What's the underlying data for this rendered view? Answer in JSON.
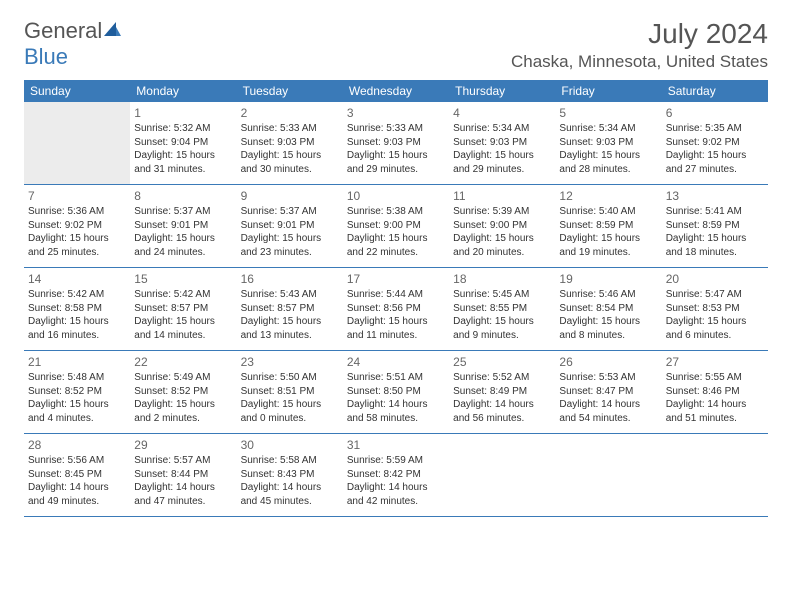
{
  "logo": {
    "text1": "General",
    "text2": "Blue"
  },
  "title": "July 2024",
  "location": "Chaska, Minnesota, United States",
  "day_headers": [
    "Sunday",
    "Monday",
    "Tuesday",
    "Wednesday",
    "Thursday",
    "Friday",
    "Saturday"
  ],
  "header_color": "#3a7ab8",
  "first_weekday": 1,
  "days": [
    {
      "n": 1,
      "sr": "5:32 AM",
      "ss": "9:04 PM",
      "dl": "15 hours and 31 minutes."
    },
    {
      "n": 2,
      "sr": "5:33 AM",
      "ss": "9:03 PM",
      "dl": "15 hours and 30 minutes."
    },
    {
      "n": 3,
      "sr": "5:33 AM",
      "ss": "9:03 PM",
      "dl": "15 hours and 29 minutes."
    },
    {
      "n": 4,
      "sr": "5:34 AM",
      "ss": "9:03 PM",
      "dl": "15 hours and 29 minutes."
    },
    {
      "n": 5,
      "sr": "5:34 AM",
      "ss": "9:03 PM",
      "dl": "15 hours and 28 minutes."
    },
    {
      "n": 6,
      "sr": "5:35 AM",
      "ss": "9:02 PM",
      "dl": "15 hours and 27 minutes."
    },
    {
      "n": 7,
      "sr": "5:36 AM",
      "ss": "9:02 PM",
      "dl": "15 hours and 25 minutes."
    },
    {
      "n": 8,
      "sr": "5:37 AM",
      "ss": "9:01 PM",
      "dl": "15 hours and 24 minutes."
    },
    {
      "n": 9,
      "sr": "5:37 AM",
      "ss": "9:01 PM",
      "dl": "15 hours and 23 minutes."
    },
    {
      "n": 10,
      "sr": "5:38 AM",
      "ss": "9:00 PM",
      "dl": "15 hours and 22 minutes."
    },
    {
      "n": 11,
      "sr": "5:39 AM",
      "ss": "9:00 PM",
      "dl": "15 hours and 20 minutes."
    },
    {
      "n": 12,
      "sr": "5:40 AM",
      "ss": "8:59 PM",
      "dl": "15 hours and 19 minutes."
    },
    {
      "n": 13,
      "sr": "5:41 AM",
      "ss": "8:59 PM",
      "dl": "15 hours and 18 minutes."
    },
    {
      "n": 14,
      "sr": "5:42 AM",
      "ss": "8:58 PM",
      "dl": "15 hours and 16 minutes."
    },
    {
      "n": 15,
      "sr": "5:42 AM",
      "ss": "8:57 PM",
      "dl": "15 hours and 14 minutes."
    },
    {
      "n": 16,
      "sr": "5:43 AM",
      "ss": "8:57 PM",
      "dl": "15 hours and 13 minutes."
    },
    {
      "n": 17,
      "sr": "5:44 AM",
      "ss": "8:56 PM",
      "dl": "15 hours and 11 minutes."
    },
    {
      "n": 18,
      "sr": "5:45 AM",
      "ss": "8:55 PM",
      "dl": "15 hours and 9 minutes."
    },
    {
      "n": 19,
      "sr": "5:46 AM",
      "ss": "8:54 PM",
      "dl": "15 hours and 8 minutes."
    },
    {
      "n": 20,
      "sr": "5:47 AM",
      "ss": "8:53 PM",
      "dl": "15 hours and 6 minutes."
    },
    {
      "n": 21,
      "sr": "5:48 AM",
      "ss": "8:52 PM",
      "dl": "15 hours and 4 minutes."
    },
    {
      "n": 22,
      "sr": "5:49 AM",
      "ss": "8:52 PM",
      "dl": "15 hours and 2 minutes."
    },
    {
      "n": 23,
      "sr": "5:50 AM",
      "ss": "8:51 PM",
      "dl": "15 hours and 0 minutes."
    },
    {
      "n": 24,
      "sr": "5:51 AM",
      "ss": "8:50 PM",
      "dl": "14 hours and 58 minutes."
    },
    {
      "n": 25,
      "sr": "5:52 AM",
      "ss": "8:49 PM",
      "dl": "14 hours and 56 minutes."
    },
    {
      "n": 26,
      "sr": "5:53 AM",
      "ss": "8:47 PM",
      "dl": "14 hours and 54 minutes."
    },
    {
      "n": 27,
      "sr": "5:55 AM",
      "ss": "8:46 PM",
      "dl": "14 hours and 51 minutes."
    },
    {
      "n": 28,
      "sr": "5:56 AM",
      "ss": "8:45 PM",
      "dl": "14 hours and 49 minutes."
    },
    {
      "n": 29,
      "sr": "5:57 AM",
      "ss": "8:44 PM",
      "dl": "14 hours and 47 minutes."
    },
    {
      "n": 30,
      "sr": "5:58 AM",
      "ss": "8:43 PM",
      "dl": "14 hours and 45 minutes."
    },
    {
      "n": 31,
      "sr": "5:59 AM",
      "ss": "8:42 PM",
      "dl": "14 hours and 42 minutes."
    }
  ],
  "labels": {
    "sunrise": "Sunrise:",
    "sunset": "Sunset:",
    "daylight": "Daylight:"
  }
}
